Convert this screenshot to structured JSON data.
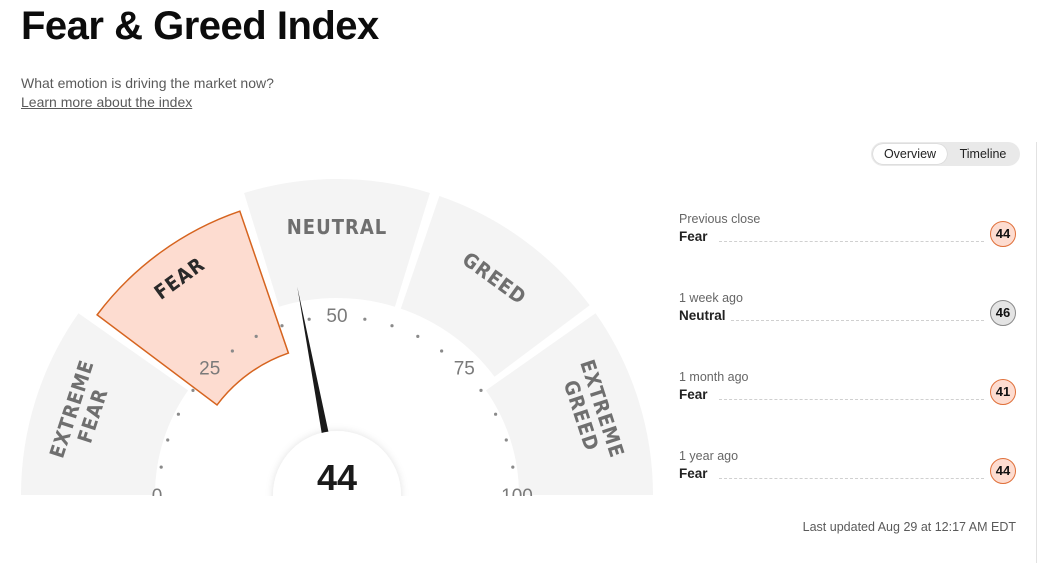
{
  "header": {
    "title": "Fear & Greed Index",
    "subtitle": "What emotion is driving the market now?",
    "learn_more": "Learn more about the index"
  },
  "view_toggle": {
    "options": [
      "Overview",
      "Timeline"
    ],
    "selected": "Overview"
  },
  "gauge": {
    "value": "44",
    "active_segment": "FEAR",
    "segments": [
      "EXTREME FEAR",
      "FEAR",
      "NEUTRAL",
      "GREED",
      "EXTREME GREED"
    ],
    "scale_labels": [
      "0",
      "25",
      "50",
      "75",
      "100"
    ],
    "colors": {
      "active_fill": "#fddcd0",
      "active_stroke": "#d6641f",
      "segment": "#f4f4f4",
      "label": "#6f6f6f"
    }
  },
  "history": [
    {
      "label": "Previous close",
      "rating": "Fear",
      "value": "44"
    },
    {
      "label": "1 week ago",
      "rating": "Neutral",
      "value": "46"
    },
    {
      "label": "1 month ago",
      "rating": "Fear",
      "value": "41"
    },
    {
      "label": "1 year ago",
      "rating": "Fear",
      "value": "44"
    }
  ],
  "last_updated": "Last updated Aug 29 at 12:17 AM EDT"
}
